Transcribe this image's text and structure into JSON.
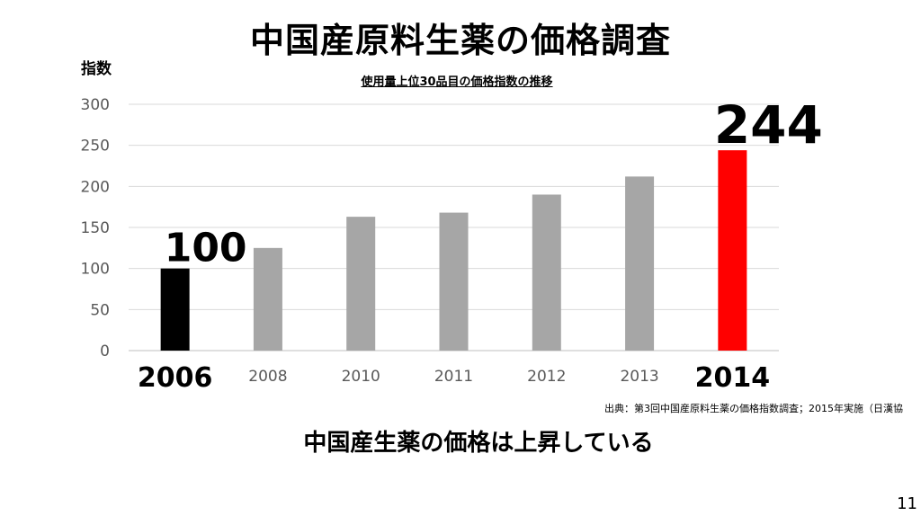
{
  "slide": {
    "title": "中国産原料生薬の価格調査",
    "conclusion": "中国産生薬の価格は上昇している",
    "source": "出典：第3回中国産原料生薬の価格指数調査；2015年実施（日漢協",
    "page_number": "11"
  },
  "chart_data": {
    "type": "bar",
    "title": "使用量上位30品目の価格指数の推移",
    "ylabel": "指数",
    "xlabel": "",
    "categories": [
      "2006",
      "2008",
      "2010",
      "2011",
      "2012",
      "2013",
      "2014"
    ],
    "values": [
      100,
      125,
      163,
      168,
      190,
      212,
      244
    ],
    "ylim": [
      0,
      300
    ],
    "yticks": [
      0,
      50,
      100,
      150,
      200,
      250,
      300
    ],
    "grid": true,
    "bar_colors": [
      "#000000",
      "#a6a6a6",
      "#a6a6a6",
      "#a6a6a6",
      "#a6a6a6",
      "#a6a6a6",
      "#ff0000"
    ],
    "highlighted": [
      "2006",
      "2014"
    ],
    "data_labels": [
      {
        "category": "2006",
        "text": "100"
      },
      {
        "category": "2014",
        "text": "244"
      }
    ]
  }
}
